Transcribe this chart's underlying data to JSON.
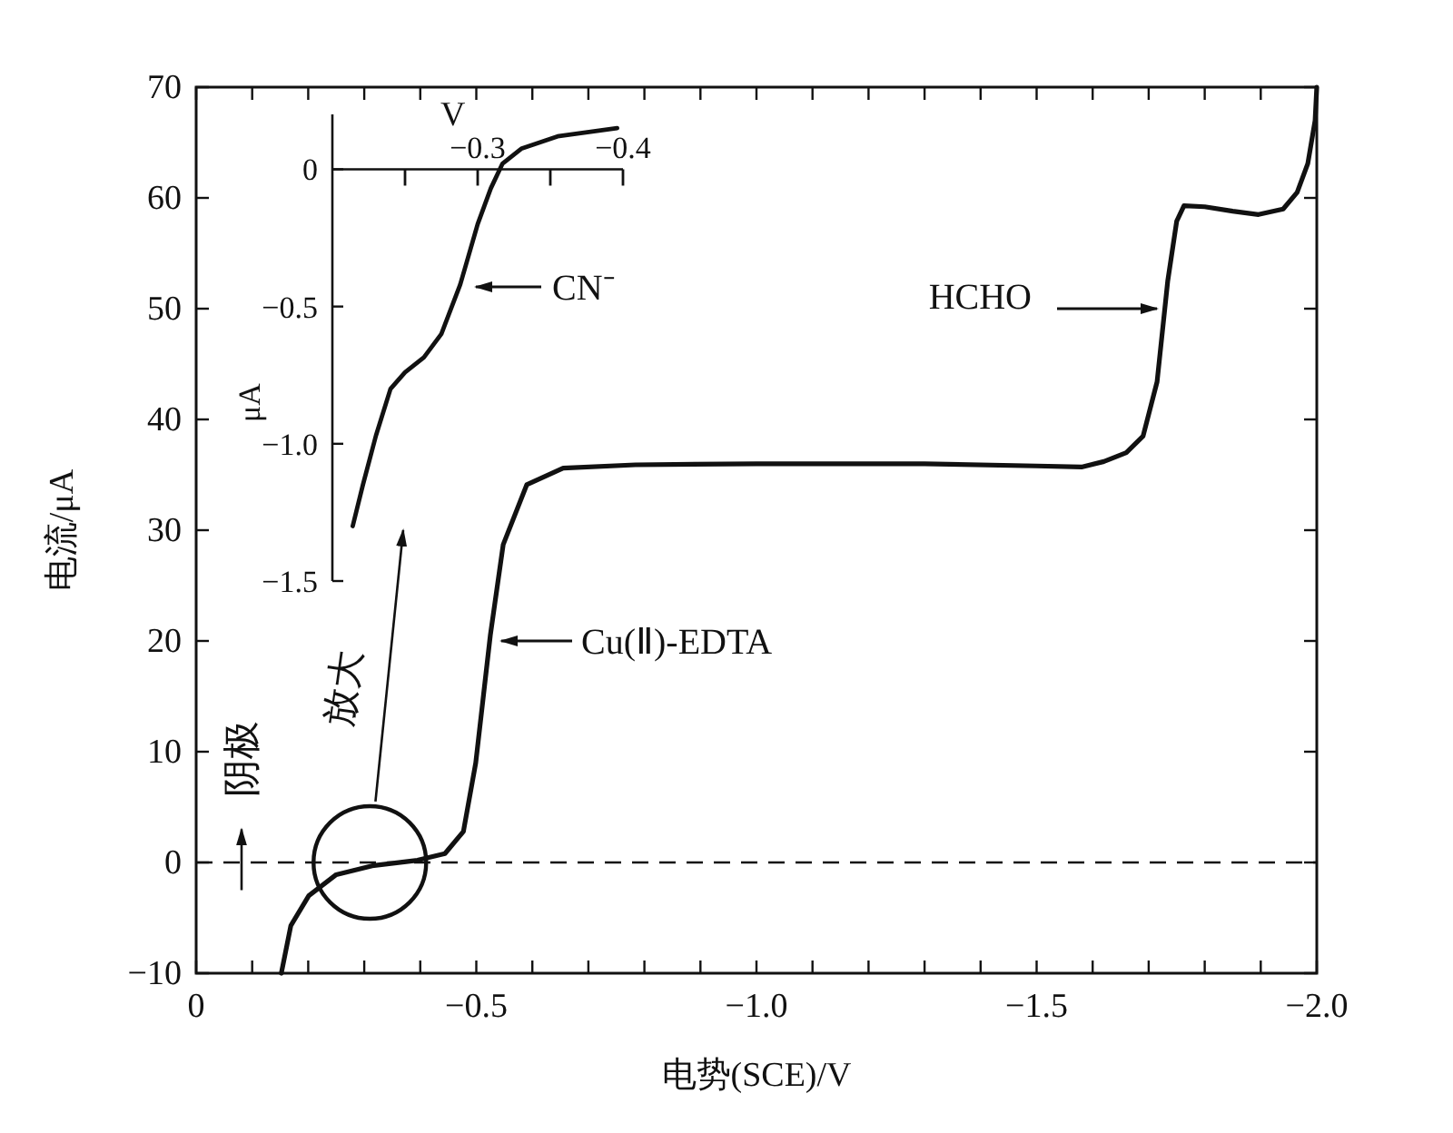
{
  "chart_data": [
    {
      "type": "line",
      "xlabel": "电势(SCE)/V",
      "ylabel": "电流/μA",
      "xlim": [
        0,
        -2.0
      ],
      "ylim": [
        -10,
        70
      ],
      "xticks": [
        0,
        {
          "value": -0.1,
          "label": null
        },
        {
          "value": -0.2,
          "label": null
        },
        {
          "value": -0.3,
          "label": null
        },
        {
          "value": -0.4,
          "label": null
        },
        {
          "value": -0.5,
          "label": "−0.5"
        },
        {
          "value": -0.6,
          "label": null
        },
        {
          "value": -0.7,
          "label": null
        },
        {
          "value": -0.8,
          "label": null
        },
        {
          "value": -0.9,
          "label": null
        },
        {
          "value": -1.0,
          "label": "−1.0"
        },
        {
          "value": -1.1,
          "label": null
        },
        {
          "value": -1.2,
          "label": null
        },
        {
          "value": -1.3,
          "label": null
        },
        {
          "value": -1.4,
          "label": null
        },
        {
          "value": -1.5,
          "label": "−1.5"
        },
        {
          "value": -1.6,
          "label": null
        },
        {
          "value": -1.7,
          "label": null
        },
        {
          "value": -1.8,
          "label": null
        },
        {
          "value": -1.9,
          "label": null
        },
        {
          "value": -2.0,
          "label": "−2.0"
        }
      ],
      "yticks": [
        {
          "value": -10,
          "label": "−10"
        },
        0,
        10,
        20,
        30,
        40,
        50,
        60,
        70
      ],
      "series": [
        {
          "color": "#111111",
          "x": [
            -0.152,
            -0.169,
            -0.201,
            -0.25,
            -0.314,
            -0.395,
            -0.444,
            -0.477,
            -0.499,
            -0.525,
            -0.548,
            -0.59,
            -0.655,
            -0.784,
            -1.0,
            -1.3,
            -1.5,
            -1.58,
            -1.62,
            -1.66,
            -1.69,
            -1.715,
            -1.734,
            -1.75,
            -1.763,
            -1.8,
            -1.85,
            -1.896,
            -1.94,
            -1.965,
            -1.984,
            -1.997,
            -2.0
          ],
          "values": [
            -10,
            -5.7,
            -3.0,
            -1.1,
            -0.3,
            0.2,
            0.8,
            2.8,
            9.0,
            20.5,
            28.7,
            34.1,
            35.6,
            35.9,
            36.0,
            36.0,
            35.8,
            35.7,
            36.2,
            37.0,
            38.5,
            43.4,
            52.5,
            57.9,
            59.3,
            59.2,
            58.8,
            58.5,
            59.0,
            60.5,
            63.1,
            67.0,
            70
          ]
        }
      ],
      "ref_lines": [
        {
          "axis": "y",
          "value": 0,
          "line_style": "dashed"
        }
      ],
      "annotations": [
        "HCHO",
        "Cu(Ⅱ)-EDTA",
        "放大",
        "阴极"
      ]
    },
    {
      "type": "line",
      "xlabel": "V",
      "ylabel": "μA",
      "xlim": [
        -0.2,
        -0.4
      ],
      "ylim": [
        -1.5,
        0.2
      ],
      "xticks": [
        {
          "value": -0.25,
          "label": null
        },
        {
          "value": -0.3,
          "label": "−0.3"
        },
        {
          "value": -0.35,
          "label": null
        },
        {
          "value": -0.4,
          "label": "−0.4"
        }
      ],
      "yticks": [
        0,
        {
          "value": -0.5,
          "label": "−0.5"
        },
        {
          "value": -1.0,
          "label": "−1.0"
        },
        {
          "value": -1.5,
          "label": "−1.5"
        }
      ],
      "series": [
        {
          "color": "#111111",
          "x": [
            -0.214,
            -0.221,
            -0.23,
            -0.24,
            -0.25,
            -0.263,
            -0.275,
            -0.288,
            -0.3,
            -0.309,
            -0.317,
            -0.33,
            -0.355,
            -0.396
          ],
          "values": [
            -1.3,
            -1.15,
            -0.97,
            -0.8,
            -0.74,
            -0.685,
            -0.6,
            -0.42,
            -0.2,
            -0.07,
            0.02,
            0.075,
            0.12,
            0.15
          ]
        }
      ],
      "annotations": [
        "CN⁻"
      ]
    }
  ]
}
